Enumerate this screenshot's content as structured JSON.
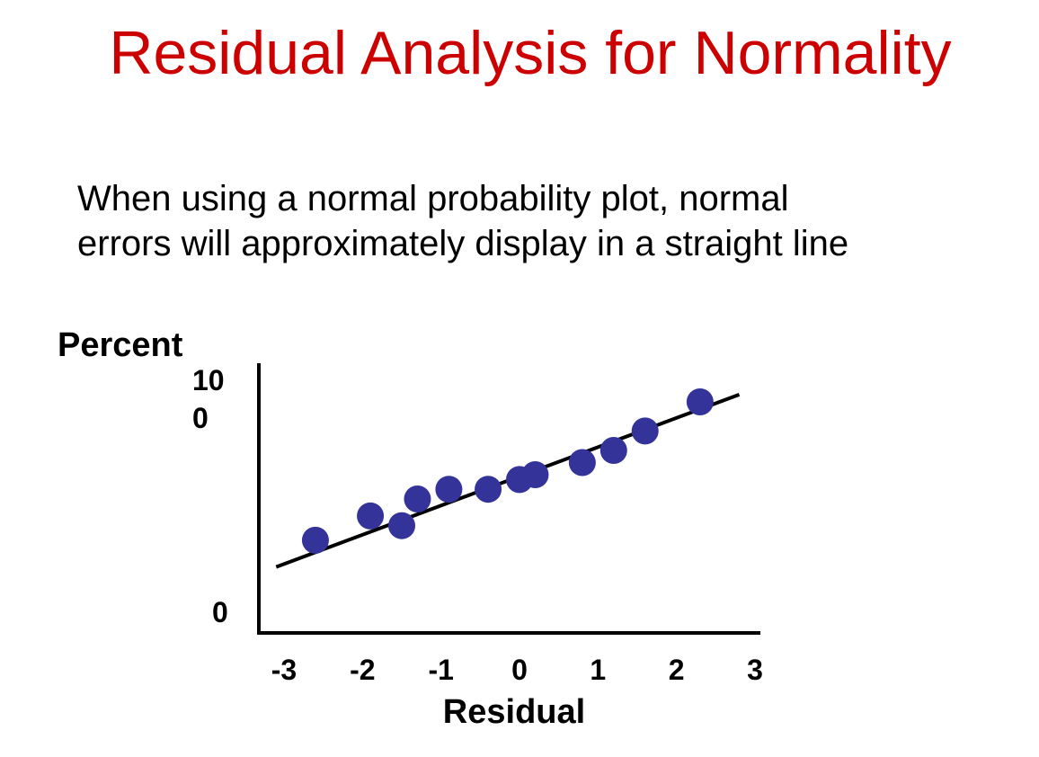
{
  "slide": {
    "title": "Residual Analysis for Normality",
    "body_lines": [
      "When using a normal probability plot, normal",
      "errors will approximately display in a straight line"
    ]
  },
  "colors": {
    "title": "#cc0000",
    "point": "#333399",
    "line": "#000000"
  },
  "chart_data": {
    "type": "scatter",
    "xlabel": "Residual",
    "ylabel": "Percent",
    "x_ticks": [
      "-3",
      "-2",
      "-1",
      "0",
      "1",
      "2",
      "3"
    ],
    "y_tick_top_line1": "10",
    "y_tick_top_line2": "0",
    "y_tick_bottom": "0",
    "xlim": [
      -3,
      3
    ],
    "ylim": [
      0,
      100
    ],
    "grid": false,
    "legend": "none",
    "points": [
      {
        "x": -2.6,
        "y": 33
      },
      {
        "x": -1.9,
        "y": 43
      },
      {
        "x": -1.5,
        "y": 39
      },
      {
        "x": -1.3,
        "y": 50
      },
      {
        "x": -0.9,
        "y": 54
      },
      {
        "x": -0.4,
        "y": 54
      },
      {
        "x": 0.0,
        "y": 58
      },
      {
        "x": 0.2,
        "y": 60
      },
      {
        "x": 0.8,
        "y": 65
      },
      {
        "x": 1.2,
        "y": 70
      },
      {
        "x": 1.6,
        "y": 78
      },
      {
        "x": 2.3,
        "y": 90
      }
    ],
    "fit_line": [
      {
        "x": -3.1,
        "y": 22
      },
      {
        "x": 2.8,
        "y": 93
      }
    ]
  }
}
